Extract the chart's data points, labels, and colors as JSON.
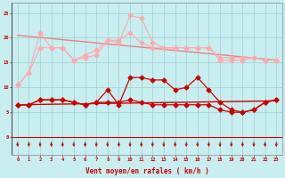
{
  "x": [
    0,
    1,
    2,
    3,
    4,
    5,
    6,
    7,
    8,
    9,
    10,
    11,
    12,
    13,
    14,
    15,
    16,
    17,
    18,
    19,
    20,
    21,
    22,
    23
  ],
  "line_pink1": [
    10.5,
    13,
    21,
    18,
    18,
    15.5,
    16,
    16.5,
    19.5,
    19,
    24.5,
    24,
    19,
    18,
    18,
    18,
    18,
    18,
    15.5,
    15.5,
    15.5,
    16,
    15.5,
    15.5
  ],
  "line_pink2": [
    10.5,
    13,
    18,
    18,
    18,
    15.5,
    16.5,
    17.5,
    19.5,
    19.5,
    21,
    19,
    18,
    18,
    18,
    18,
    18,
    18,
    16,
    16,
    16,
    16,
    15.5,
    15.5
  ],
  "line_red1": [
    6.5,
    6.5,
    7.5,
    7.5,
    7.5,
    7.0,
    6.5,
    7.0,
    9.5,
    6.5,
    12.0,
    12.0,
    11.5,
    11.5,
    9.5,
    10.0,
    12.0,
    9.5,
    7.0,
    5.5,
    5.0,
    5.5,
    7.0,
    7.5
  ],
  "line_red2": [
    6.5,
    6.5,
    7.5,
    7.5,
    7.5,
    7.0,
    6.5,
    7.0,
    7.0,
    7.0,
    7.5,
    7.0,
    6.5,
    6.5,
    6.5,
    6.5,
    6.5,
    6.5,
    5.5,
    5.0,
    5.0,
    5.5,
    7.0,
    7.5
  ],
  "background_color": "#c8eef0",
  "grid_color": "#9dcfcf",
  "light_pink": "#f08080",
  "lighter_pink": "#ffaaaa",
  "dark_red": "#cc0000",
  "xlabel": "Vent moyen/en rafales ( km/h )",
  "yticks": [
    0,
    5,
    10,
    15,
    20,
    25
  ],
  "xlim": [
    -0.5,
    23.5
  ],
  "ylim": [
    -3.5,
    27
  ]
}
